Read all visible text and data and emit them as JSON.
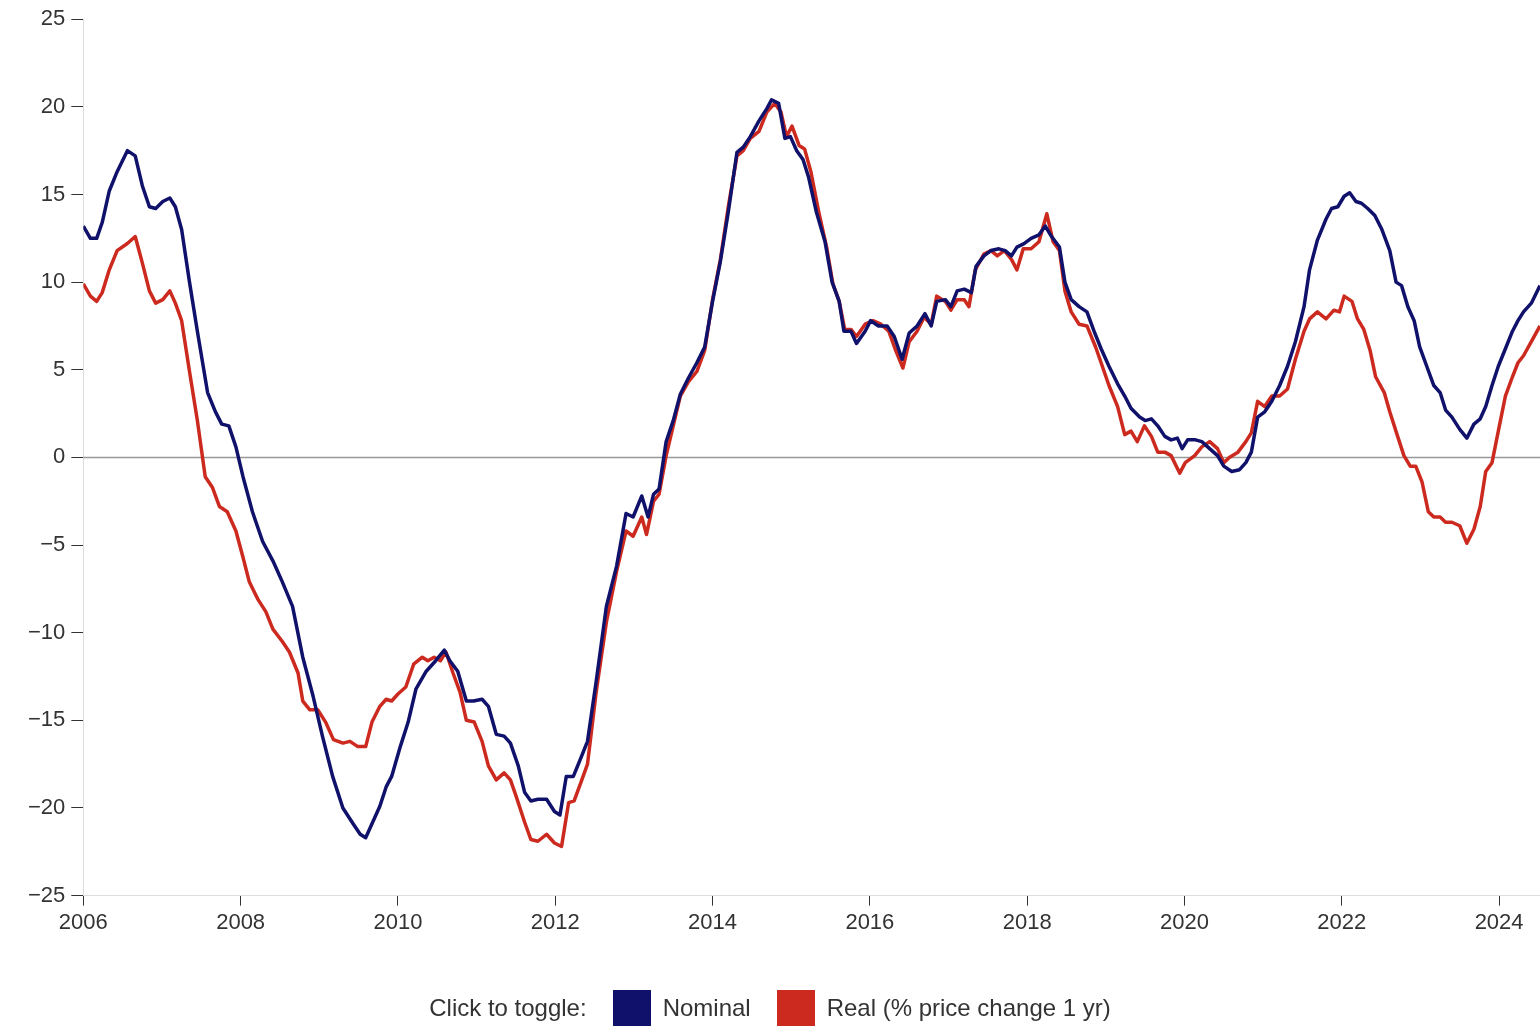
{
  "chart_data": {
    "type": "line",
    "legend_title": "Click to toggle:",
    "legend": "bottom",
    "grid": false,
    "xlim": [
      2006,
      2024.52
    ],
    "xticks": [
      2006,
      2008,
      2010,
      2012,
      2014,
      2016,
      2018,
      2020,
      2022,
      2024
    ],
    "ylim": [
      -25,
      25
    ],
    "yticks": [
      {
        "value": -25,
        "label": "−25"
      },
      {
        "value": -20,
        "label": "−20"
      },
      {
        "value": -15,
        "label": "−15"
      },
      {
        "value": -10,
        "label": "−10"
      },
      {
        "value": -5,
        "label": "−5"
      },
      0,
      5,
      10,
      15,
      20,
      25
    ],
    "ref_lines": [
      {
        "axis": "y",
        "value": 0,
        "color": "#999999"
      }
    ],
    "series": [
      {
        "name": "Nominal",
        "color": "#10116b",
        "x": [
          2006.0,
          2006.09,
          2006.17,
          2006.24,
          2006.33,
          2006.43,
          2006.56,
          2006.66,
          2006.75,
          2006.84,
          2006.92,
          2007.01,
          2007.1,
          2007.17,
          2007.25,
          2007.35,
          2007.45,
          2007.58,
          2007.68,
          2007.76,
          2007.85,
          2007.94,
          2008.03,
          2008.15,
          2008.28,
          2008.41,
          2008.53,
          2008.66,
          2008.79,
          2008.92,
          2009.04,
          2009.17,
          2009.3,
          2009.43,
          2009.52,
          2009.59,
          2009.68,
          2009.77,
          2009.85,
          2009.92,
          2010.03,
          2010.13,
          2010.23,
          2010.36,
          2010.48,
          2010.59,
          2010.66,
          2010.76,
          2010.87,
          2010.96,
          2011.07,
          2011.15,
          2011.25,
          2011.35,
          2011.43,
          2011.53,
          2011.61,
          2011.69,
          2011.78,
          2011.89,
          2011.99,
          2012.06,
          2012.14,
          2012.23,
          2012.33,
          2012.41,
          2012.52,
          2012.65,
          2012.78,
          2012.9,
          2012.99,
          2013.1,
          2013.18,
          2013.25,
          2013.32,
          2013.41,
          2013.5,
          2013.59,
          2013.69,
          2013.8,
          2013.9,
          2014.0,
          2014.1,
          2014.2,
          2014.31,
          2014.39,
          2014.48,
          2014.59,
          2014.69,
          2014.75,
          2014.84,
          2014.92,
          2014.99,
          2015.07,
          2015.15,
          2015.22,
          2015.32,
          2015.43,
          2015.52,
          2015.61,
          2015.67,
          2015.76,
          2015.83,
          2015.94,
          2016.01,
          2016.11,
          2016.22,
          2016.31,
          2016.41,
          2016.5,
          2016.6,
          2016.7,
          2016.78,
          2016.85,
          2016.96,
          2017.03,
          2017.11,
          2017.2,
          2017.29,
          2017.35,
          2017.45,
          2017.54,
          2017.64,
          2017.72,
          2017.8,
          2017.87,
          2017.96,
          2018.05,
          2018.15,
          2018.23,
          2018.31,
          2018.41,
          2018.48,
          2018.56,
          2018.66,
          2018.76,
          2018.85,
          2018.94,
          2019.04,
          2019.15,
          2019.24,
          2019.32,
          2019.43,
          2019.5,
          2019.58,
          2019.66,
          2019.75,
          2019.83,
          2019.91,
          2019.97,
          2020.04,
          2020.14,
          2020.22,
          2020.32,
          2020.42,
          2020.5,
          2020.6,
          2020.7,
          2020.78,
          2020.85,
          2020.93,
          2021.02,
          2021.11,
          2021.21,
          2021.31,
          2021.41,
          2021.52,
          2021.59,
          2021.69,
          2021.8,
          2021.87,
          2021.95,
          2022.03,
          2022.1,
          2022.18,
          2022.25,
          2022.33,
          2022.42,
          2022.51,
          2022.61,
          2022.69,
          2022.76,
          2022.84,
          2022.92,
          2022.99,
          2023.08,
          2023.17,
          2023.25,
          2023.32,
          2023.4,
          2023.5,
          2023.59,
          2023.68,
          2023.76,
          2023.83,
          2023.91,
          2023.99,
          2024.08,
          2024.17,
          2024.24,
          2024.31,
          2024.41,
          2024.52
        ],
        "values": [
          13.2,
          12.5,
          12.5,
          13.4,
          15.2,
          16.3,
          17.5,
          17.2,
          15.5,
          14.3,
          14.2,
          14.6,
          14.8,
          14.3,
          13.0,
          10.0,
          7.2,
          3.7,
          2.6,
          1.9,
          1.8,
          0.6,
          -1.1,
          -3.1,
          -4.8,
          -5.9,
          -7.1,
          -8.5,
          -11.4,
          -13.6,
          -15.9,
          -18.2,
          -20.0,
          -20.9,
          -21.5,
          -21.7,
          -20.8,
          -19.9,
          -18.8,
          -18.2,
          -16.5,
          -15.1,
          -13.2,
          -12.2,
          -11.6,
          -11.0,
          -11.6,
          -12.2,
          -13.9,
          -13.9,
          -13.8,
          -14.2,
          -15.8,
          -15.9,
          -16.3,
          -17.6,
          -19.1,
          -19.6,
          -19.5,
          -19.5,
          -20.2,
          -20.4,
          -18.2,
          -18.2,
          -17.1,
          -16.2,
          -12.8,
          -8.5,
          -6.2,
          -3.2,
          -3.4,
          -2.2,
          -3.4,
          -2.1,
          -1.8,
          0.9,
          2.1,
          3.6,
          4.5,
          5.4,
          6.3,
          8.9,
          11.2,
          14.0,
          17.4,
          17.7,
          18.3,
          19.2,
          19.9,
          20.4,
          20.2,
          18.2,
          18.3,
          17.5,
          17.0,
          16.0,
          14.0,
          12.3,
          10.0,
          8.9,
          7.2,
          7.2,
          6.5,
          7.2,
          7.8,
          7.5,
          7.5,
          6.9,
          5.6,
          7.1,
          7.5,
          8.2,
          7.5,
          8.9,
          9.0,
          8.6,
          9.5,
          9.6,
          9.4,
          10.9,
          11.5,
          11.8,
          11.9,
          11.8,
          11.5,
          12.0,
          12.2,
          12.5,
          12.7,
          13.2,
          12.6,
          12.0,
          10.0,
          9.0,
          8.6,
          8.3,
          7.2,
          6.2,
          5.2,
          4.2,
          3.5,
          2.8,
          2.3,
          2.1,
          2.2,
          1.8,
          1.2,
          1.0,
          1.1,
          0.5,
          1.0,
          1.0,
          0.9,
          0.5,
          0.1,
          -0.5,
          -0.8,
          -0.7,
          -0.3,
          0.3,
          2.3,
          2.6,
          3.2,
          4.1,
          5.2,
          6.6,
          8.6,
          10.7,
          12.4,
          13.6,
          14.2,
          14.3,
          14.9,
          15.1,
          14.6,
          14.5,
          14.2,
          13.8,
          13.0,
          11.8,
          10.0,
          9.8,
          8.6,
          7.8,
          6.3,
          5.2,
          4.1,
          3.7,
          2.7,
          2.3,
          1.6,
          1.1,
          1.9,
          2.2,
          2.9,
          4.1,
          5.2,
          6.2,
          7.2,
          7.8,
          8.3,
          8.8,
          9.8
        ]
      },
      {
        "name": "Real (% price change 1 yr)",
        "color": "#cc2a1f",
        "x": [
          2006.0,
          2006.09,
          2006.17,
          2006.24,
          2006.33,
          2006.43,
          2006.56,
          2006.66,
          2006.75,
          2006.84,
          2006.92,
          2007.01,
          2007.1,
          2007.17,
          2007.25,
          2007.35,
          2007.45,
          2007.55,
          2007.64,
          2007.73,
          2007.83,
          2007.94,
          2008.03,
          2008.11,
          2008.22,
          2008.32,
          2008.41,
          2008.53,
          2008.62,
          2008.73,
          2008.79,
          2008.88,
          2008.98,
          2009.08,
          2009.18,
          2009.3,
          2009.39,
          2009.49,
          2009.59,
          2009.67,
          2009.77,
          2009.85,
          2009.92,
          2010.0,
          2010.1,
          2010.2,
          2010.31,
          2010.38,
          2010.46,
          2010.54,
          2010.61,
          2010.7,
          2010.79,
          2010.87,
          2010.97,
          2011.07,
          2011.15,
          2011.25,
          2011.35,
          2011.43,
          2011.5,
          2011.61,
          2011.69,
          2011.78,
          2011.89,
          2011.99,
          2012.08,
          2012.17,
          2012.24,
          2012.33,
          2012.41,
          2012.52,
          2012.65,
          2012.78,
          2012.9,
          2012.99,
          2013.1,
          2013.16,
          2013.25,
          2013.32,
          2013.41,
          2013.5,
          2013.59,
          2013.69,
          2013.8,
          2013.9,
          2014.0,
          2014.1,
          2014.2,
          2014.31,
          2014.39,
          2014.48,
          2014.59,
          2014.69,
          2014.79,
          2014.87,
          2014.94,
          2015.01,
          2015.1,
          2015.17,
          2015.25,
          2015.35,
          2015.45,
          2015.53,
          2015.61,
          2015.68,
          2015.76,
          2015.83,
          2015.94,
          2016.04,
          2016.14,
          2016.24,
          2016.32,
          2016.42,
          2016.5,
          2016.6,
          2016.69,
          2016.78,
          2016.85,
          2016.96,
          2017.03,
          2017.11,
          2017.2,
          2017.26,
          2017.34,
          2017.45,
          2017.54,
          2017.62,
          2017.71,
          2017.8,
          2017.87,
          2017.95,
          2018.05,
          2018.15,
          2018.25,
          2018.33,
          2018.41,
          2018.48,
          2018.56,
          2018.66,
          2018.76,
          2018.87,
          2018.94,
          2019.04,
          2019.15,
          2019.24,
          2019.32,
          2019.4,
          2019.49,
          2019.58,
          2019.66,
          2019.75,
          2019.83,
          2019.94,
          2020.01,
          2020.13,
          2020.22,
          2020.32,
          2020.42,
          2020.5,
          2020.57,
          2020.68,
          2020.78,
          2020.85,
          2020.93,
          2021.02,
          2021.11,
          2021.21,
          2021.31,
          2021.41,
          2021.52,
          2021.59,
          2021.69,
          2021.8,
          2021.9,
          2021.97,
          2022.03,
          2022.13,
          2022.2,
          2022.28,
          2022.36,
          2022.43,
          2022.54,
          2022.61,
          2022.71,
          2022.79,
          2022.87,
          2022.94,
          2023.02,
          2023.1,
          2023.17,
          2023.25,
          2023.32,
          2023.4,
          2023.5,
          2023.59,
          2023.68,
          2023.76,
          2023.83,
          2023.91,
          2023.99,
          2024.08,
          2024.17,
          2024.24,
          2024.31,
          2024.41,
          2024.52
        ],
        "values": [
          9.9,
          9.2,
          8.9,
          9.4,
          10.7,
          11.8,
          12.2,
          12.6,
          11.1,
          9.5,
          8.8,
          9.0,
          9.5,
          8.8,
          7.8,
          4.9,
          2.1,
          -1.1,
          -1.7,
          -2.8,
          -3.1,
          -4.2,
          -5.7,
          -7.1,
          -8.1,
          -8.8,
          -9.8,
          -10.5,
          -11.1,
          -12.3,
          -13.9,
          -14.4,
          -14.4,
          -15.1,
          -16.1,
          -16.3,
          -16.2,
          -16.5,
          -16.5,
          -15.1,
          -14.2,
          -13.8,
          -13.9,
          -13.5,
          -13.1,
          -11.8,
          -11.4,
          -11.6,
          -11.4,
          -11.6,
          -11.1,
          -12.3,
          -13.4,
          -15.0,
          -15.1,
          -16.2,
          -17.6,
          -18.4,
          -18.0,
          -18.4,
          -19.3,
          -20.8,
          -21.8,
          -21.9,
          -21.5,
          -22.0,
          -22.2,
          -19.7,
          -19.6,
          -18.5,
          -17.5,
          -13.4,
          -9.4,
          -6.5,
          -4.2,
          -4.5,
          -3.4,
          -4.4,
          -2.5,
          -2.1,
          0.1,
          1.8,
          3.5,
          4.3,
          4.9,
          6.1,
          9.0,
          11.3,
          14.3,
          17.2,
          17.5,
          18.2,
          18.6,
          19.7,
          20.2,
          19.7,
          18.3,
          18.9,
          17.8,
          17.6,
          16.3,
          14.0,
          12.0,
          9.9,
          8.9,
          7.3,
          7.3,
          6.9,
          7.6,
          7.8,
          7.6,
          7.2,
          6.2,
          5.1,
          6.6,
          7.2,
          8.0,
          7.6,
          9.2,
          8.9,
          8.4,
          9.0,
          9.0,
          8.6,
          10.7,
          11.6,
          11.8,
          11.5,
          11.8,
          11.3,
          10.7,
          11.9,
          11.9,
          12.3,
          13.9,
          12.3,
          11.8,
          9.5,
          8.3,
          7.6,
          7.5,
          6.3,
          5.4,
          4.1,
          2.9,
          1.3,
          1.5,
          0.9,
          1.8,
          1.2,
          0.3,
          0.3,
          0.1,
          -0.9,
          -0.3,
          0.1,
          0.6,
          0.9,
          0.5,
          -0.3,
          0.0,
          0.3,
          0.9,
          1.4,
          3.2,
          2.9,
          3.5,
          3.5,
          3.9,
          5.6,
          7.2,
          7.9,
          8.3,
          7.9,
          8.4,
          8.3,
          9.2,
          8.9,
          7.9,
          7.3,
          6.1,
          4.6,
          3.7,
          2.6,
          1.2,
          0.1,
          -0.5,
          -0.5,
          -1.4,
          -3.1,
          -3.4,
          -3.4,
          -3.7,
          -3.7,
          -3.9,
          -4.9,
          -4.1,
          -2.8,
          -0.8,
          -0.3,
          1.5,
          3.5,
          4.6,
          5.4,
          5.8,
          6.6,
          7.5
        ]
      }
    ]
  }
}
